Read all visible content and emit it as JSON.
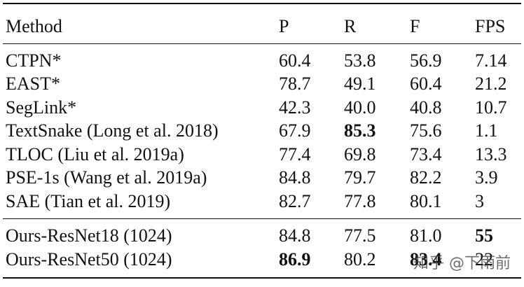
{
  "table": {
    "header": [
      "Method",
      "P",
      "R",
      "F",
      "FPS"
    ],
    "rows": [
      [
        "CTPN*",
        "60.4",
        "53.8",
        "56.9",
        "7.14"
      ],
      [
        "EAST*",
        "78.7",
        "49.1",
        "60.4",
        "21.2"
      ],
      [
        "SegLink*",
        "42.3",
        "40.0",
        "40.8",
        "10.7"
      ],
      [
        "TextSnake (Long et al. 2018)",
        "67.9",
        "85.3",
        "75.6",
        "1.1"
      ],
      [
        "TLOC (Liu et al. 2019a)",
        "77.4",
        "69.8",
        "73.4",
        "13.3"
      ],
      [
        "PSE-1s (Wang et al. 2019a)",
        "84.8",
        "79.7",
        "82.2",
        "3.9"
      ],
      [
        "SAE (Tian et al. 2019)",
        "82.7",
        "77.8",
        "80.1",
        "3"
      ],
      [
        "Ours-ResNet18 (1024)",
        "84.8",
        "77.5",
        "81.0",
        "55"
      ],
      [
        "Ours-ResNet50 (1024)",
        "86.9",
        "80.2",
        "83.4",
        "22"
      ]
    ]
  },
  "watermark": "知乎 @下雨前"
}
